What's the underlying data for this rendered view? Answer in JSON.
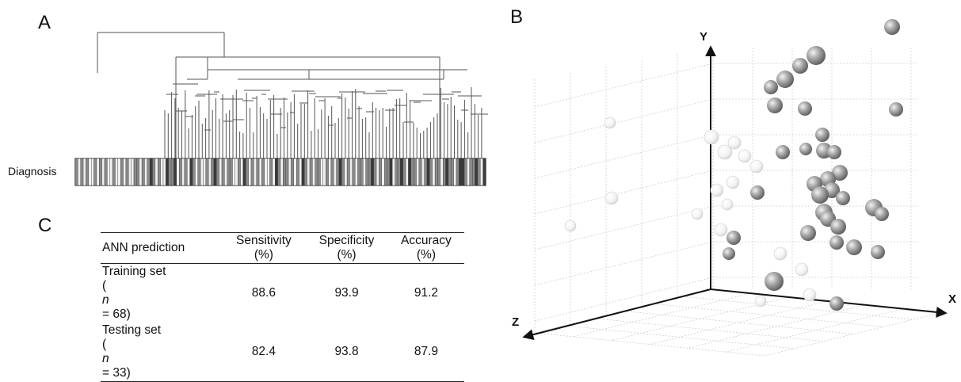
{
  "panels": {
    "a": "A",
    "b": "B",
    "c": "C"
  },
  "panel_a": {
    "row_label": "Diagnosis",
    "diagnosis_strip": [
      1,
      0,
      1,
      0,
      1,
      0,
      0,
      1,
      0,
      1,
      0,
      1,
      0,
      0,
      1,
      0,
      0,
      1,
      0,
      1,
      0,
      0,
      1,
      1,
      0,
      1,
      0,
      1,
      2,
      1,
      0,
      1,
      0,
      0,
      2,
      1,
      1,
      2,
      0,
      1,
      0,
      1,
      0,
      2,
      1,
      0,
      1,
      0,
      0,
      1,
      0,
      1,
      2,
      1,
      0,
      1,
      0,
      1,
      1,
      0,
      0,
      1,
      0,
      2,
      1,
      0,
      1,
      0,
      1,
      0,
      1,
      0,
      0,
      1,
      0,
      2,
      1,
      0,
      1,
      1,
      0,
      1,
      0,
      1,
      0,
      2,
      1,
      0,
      1,
      0,
      1,
      1,
      0,
      0,
      1,
      0,
      1,
      0,
      1,
      2,
      1,
      0,
      1,
      0,
      1,
      0,
      1,
      1,
      0,
      1,
      1,
      2,
      1,
      0,
      1,
      0,
      1,
      1,
      2,
      0,
      1,
      1,
      2,
      1,
      0,
      2,
      1,
      1,
      0,
      1,
      0,
      1,
      2,
      1,
      0,
      1,
      1,
      0,
      1,
      2,
      1,
      1,
      0,
      1,
      2,
      2,
      1,
      0,
      1,
      1,
      2,
      1,
      0,
      2
    ]
  },
  "panel_b": {
    "axes": {
      "x": "X",
      "y": "Y",
      "z": "Z"
    }
  },
  "panel_c": {
    "header": {
      "col1": "ANN prediction",
      "col2": [
        "Sensitivity",
        "(%)"
      ],
      "col3": [
        "Specificity",
        "(%)"
      ],
      "col4": [
        "Accuracy",
        "(%)"
      ]
    },
    "rows": [
      {
        "name": "Training set",
        "n_prefix": "(",
        "n_var": "n",
        "n_value": " = 68)",
        "sensitivity": "88.6",
        "specificity": "93.9",
        "accuracy": "91.2"
      },
      {
        "name": "Testing set",
        "n_prefix": "(",
        "n_var": "n",
        "n_value": " = 33)",
        "sensitivity": "82.4",
        "specificity": "93.8",
        "accuracy": "87.9"
      }
    ]
  }
}
